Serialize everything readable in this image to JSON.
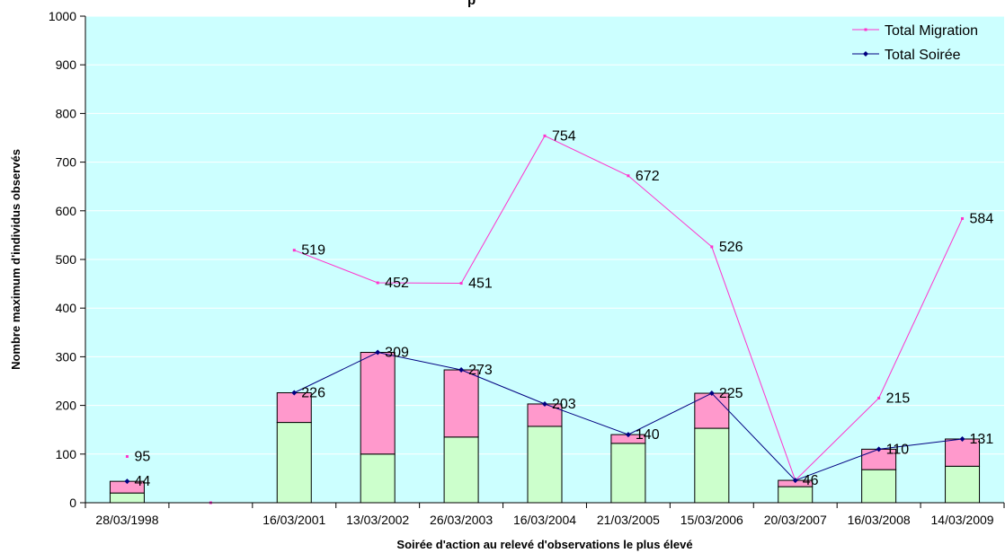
{
  "chart_data": {
    "type": "bar",
    "title": "",
    "title_fragment": "p",
    "xlabel": "Soirée d'action au relevé d'observations le plus élevé",
    "ylabel": "Nombre maximum d'individus observés",
    "ylim": [
      0,
      1000
    ],
    "yticks": [
      "0",
      "100",
      "200",
      "300",
      "400",
      "500",
      "600",
      "700",
      "800",
      "900",
      "1000"
    ],
    "categories": [
      "28/03/1998",
      "",
      "16/03/2001",
      "13/03/2002",
      "26/03/2003",
      "16/03/2004",
      "21/03/2005",
      "15/03/2006",
      "20/03/2007",
      "16/03/2008",
      "14/03/2009"
    ],
    "stacked_bars": {
      "green_values": [
        20,
        null,
        165,
        100,
        135,
        157,
        122,
        153,
        33,
        68,
        75
      ],
      "pink_values": [
        24,
        null,
        61,
        209,
        138,
        46,
        18,
        72,
        13,
        42,
        56
      ],
      "colors": [
        "#ccffcc",
        "#ff99cc"
      ]
    },
    "series": [
      {
        "name": "Total Migration",
        "values": [
          95,
          0,
          519,
          452,
          451,
          754,
          672,
          526,
          46,
          215,
          584
        ],
        "labels": [
          "95",
          "",
          "519",
          "452",
          "451",
          "754",
          "672",
          "526",
          "",
          "215",
          "584"
        ],
        "color": "#ff33cc"
      },
      {
        "name": "Total Soirée",
        "values": [
          44,
          null,
          226,
          309,
          273,
          203,
          140,
          225,
          46,
          110,
          131
        ],
        "labels": [
          "44",
          "",
          "226",
          "309",
          "273",
          "203",
          "140",
          "225",
          "46",
          "110",
          "131"
        ],
        "color": "#000080"
      }
    ],
    "legend_position": "top-right",
    "plot_background": "#ccffff",
    "grid": true
  }
}
